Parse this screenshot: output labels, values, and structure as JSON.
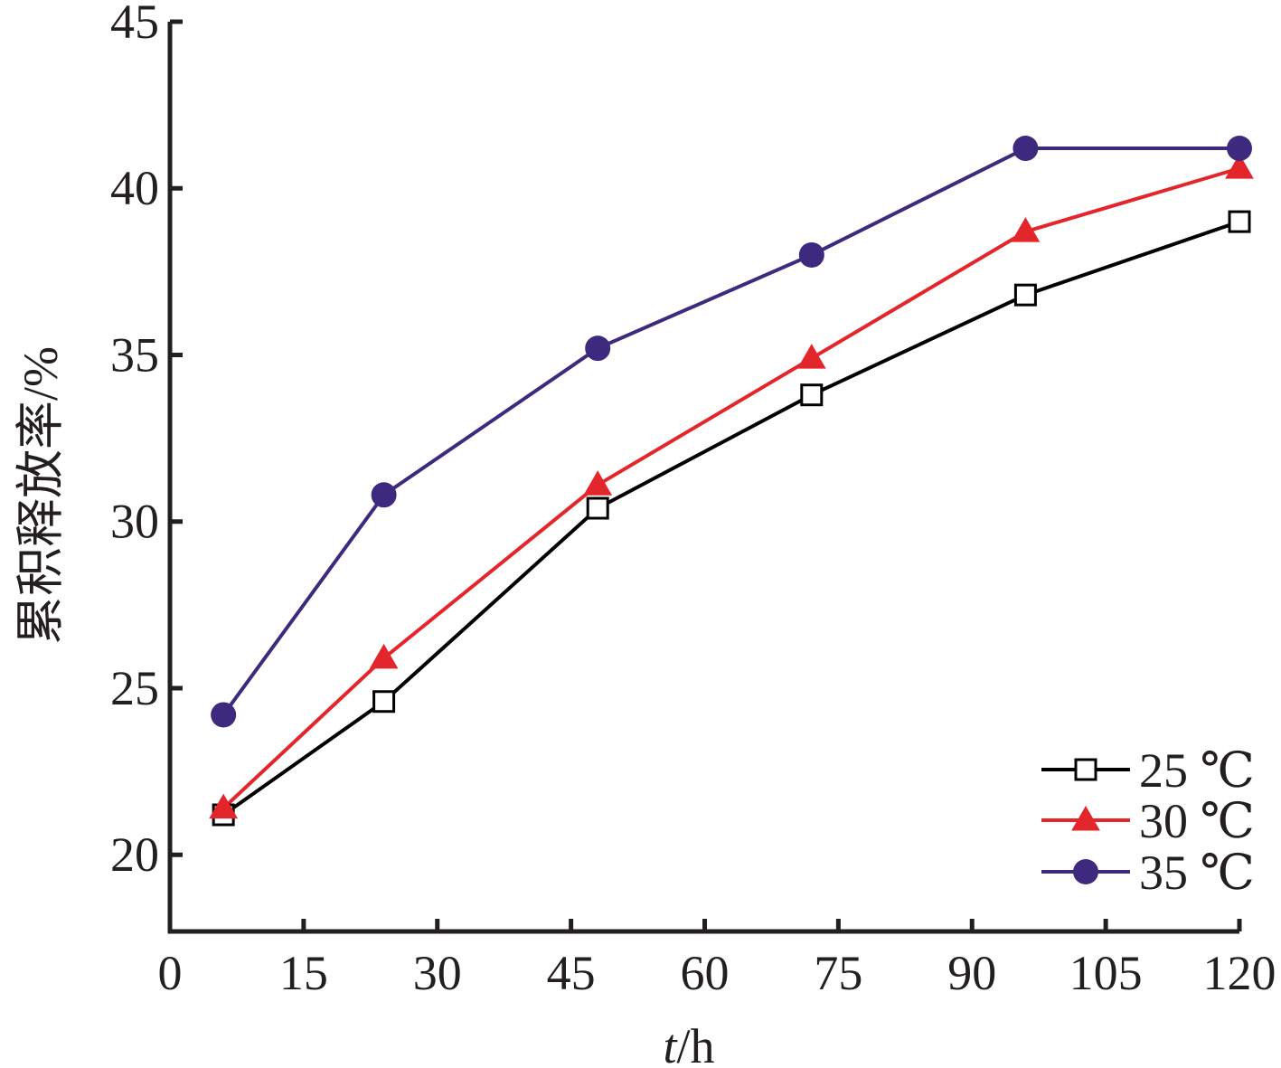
{
  "chart_data": {
    "type": "line",
    "title": "",
    "xlabel": "t/h",
    "ylabel": "累积释放率/%",
    "xlim": [
      0,
      120
    ],
    "ylim": [
      17.7,
      45
    ],
    "x_ticks": [
      0,
      15,
      30,
      45,
      60,
      75,
      90,
      105,
      120
    ],
    "y_ticks": [
      20,
      25,
      30,
      35,
      40,
      45
    ],
    "grid": false,
    "legend_position": "bottom-right",
    "x": [
      6,
      24,
      48,
      72,
      96,
      120
    ],
    "series": [
      {
        "name": "25 ℃",
        "marker": "square-open",
        "color": "#000000",
        "values": [
          21.2,
          24.6,
          30.4,
          33.8,
          36.8,
          39.0
        ]
      },
      {
        "name": "30 ℃",
        "marker": "triangle",
        "color": "#e3262b",
        "values": [
          21.4,
          25.9,
          31.1,
          34.9,
          38.7,
          40.6
        ]
      },
      {
        "name": "35 ℃",
        "marker": "circle",
        "color": "#3d2a7e",
        "values": [
          24.2,
          30.8,
          35.2,
          38.0,
          41.2,
          41.2
        ]
      }
    ]
  }
}
